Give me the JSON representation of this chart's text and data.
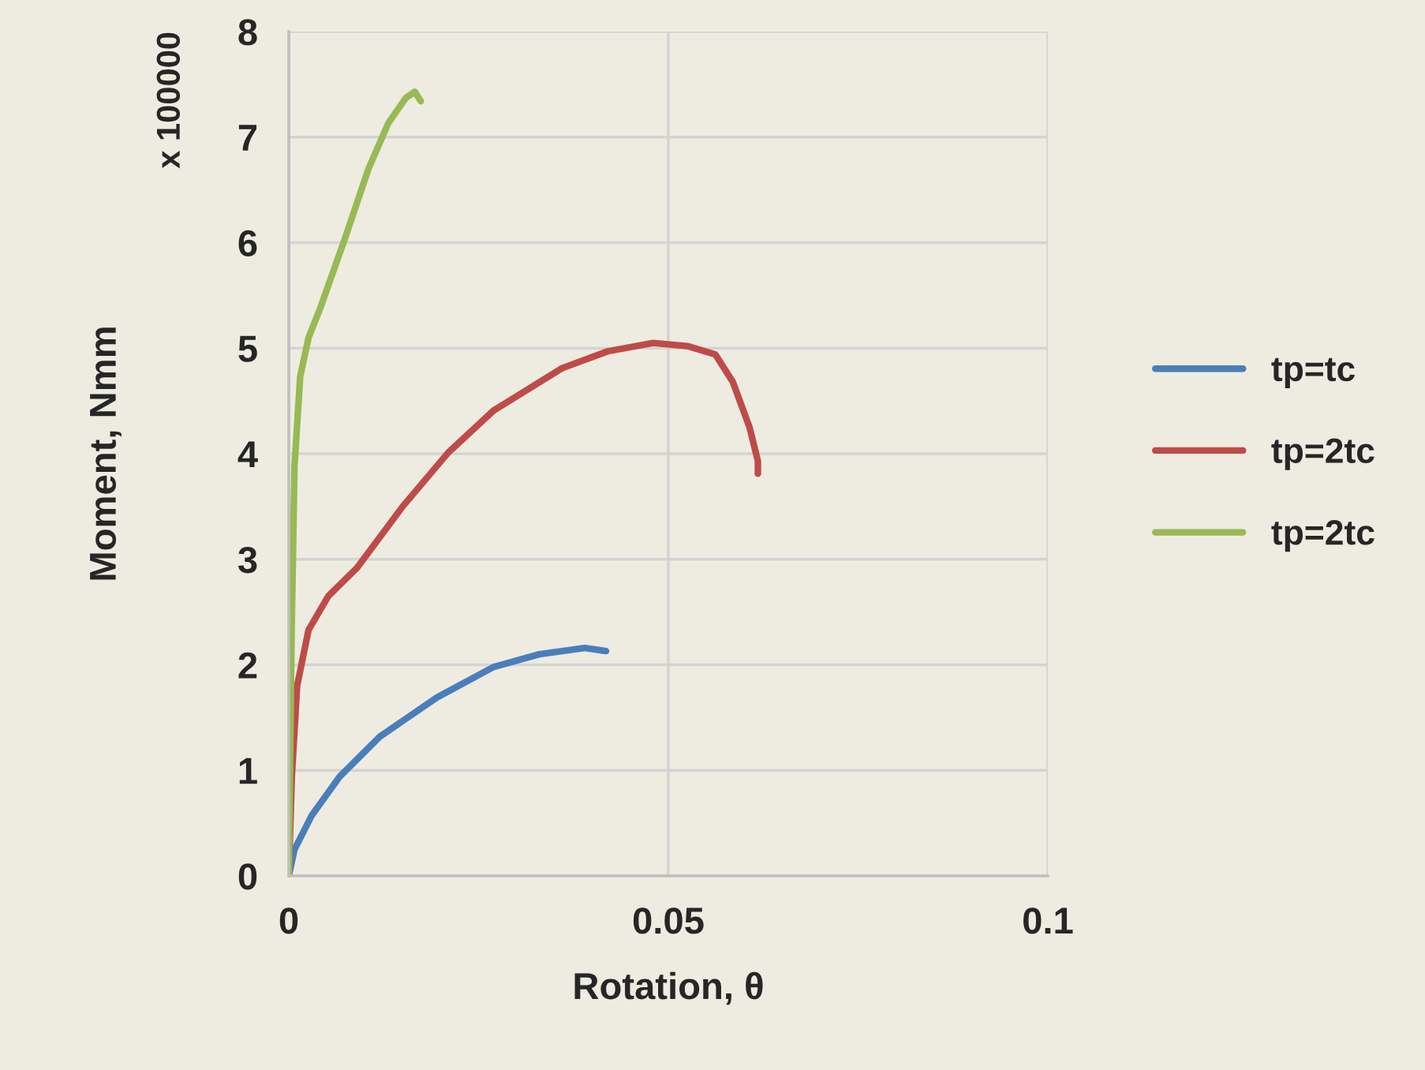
{
  "chart_data": {
    "type": "line",
    "xlabel": "Rotation, θ",
    "ylabel": "Moment, Nmm",
    "annotations": [
      "x 100000"
    ],
    "xlim": [
      0,
      0.1
    ],
    "xticks": [
      0,
      0.05,
      0.1
    ],
    "ylim": [
      0,
      8
    ],
    "yticks": [
      0,
      1,
      2,
      3,
      4,
      5,
      6,
      7,
      8
    ],
    "grid": true,
    "legend": "right",
    "marker": "none",
    "line_style": "solid",
    "series": [
      {
        "name": "tp=tc",
        "color": "#4a7ebb",
        "x": [
          0,
          0.00075,
          0.003,
          0.0067,
          0.012,
          0.0195,
          0.027,
          0.033,
          0.039,
          0.0418
        ],
        "values": [
          0,
          0.25,
          0.57,
          0.94,
          1.32,
          1.69,
          1.98,
          2.1,
          2.16,
          2.13
        ]
      },
      {
        "name": "tp=2tc",
        "color": "#be4b48",
        "x": [
          0,
          0.0004,
          0.0011,
          0.0026,
          0.0052,
          0.009,
          0.015,
          0.021,
          0.027,
          0.036,
          0.042,
          0.048,
          0.0525,
          0.0562,
          0.0585,
          0.0607,
          0.0618,
          0.0618
        ],
        "values": [
          0,
          0.94,
          1.8,
          2.33,
          2.65,
          2.92,
          3.5,
          4.01,
          4.41,
          4.81,
          4.97,
          5.05,
          5.02,
          4.94,
          4.68,
          4.25,
          3.93,
          3.81
        ]
      },
      {
        "name": "tp=2tc",
        "color": "#98b954",
        "x": [
          0,
          0.00037,
          0.00075,
          0.0015,
          0.0026,
          0.0041,
          0.0075,
          0.0105,
          0.0131,
          0.0154,
          0.0166,
          0.0174
        ],
        "values": [
          0,
          2.28,
          3.88,
          4.73,
          5.1,
          5.37,
          6.06,
          6.7,
          7.13,
          7.37,
          7.43,
          7.34
        ]
      }
    ]
  }
}
